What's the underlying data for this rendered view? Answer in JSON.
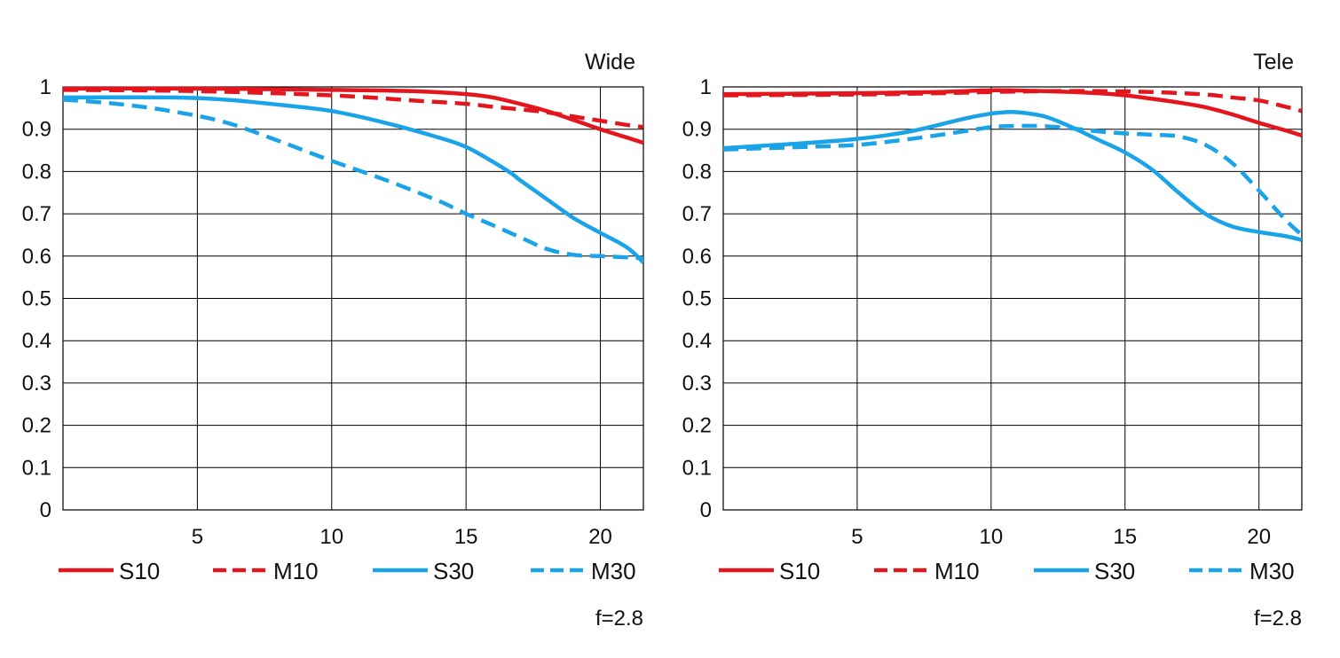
{
  "colors": {
    "red": "#e3161d",
    "blue": "#1aa3e8",
    "grid": "#000000"
  },
  "chart_data": [
    {
      "type": "line",
      "title": "Wide",
      "note": "f=2.8",
      "xlim": [
        0,
        21.6
      ],
      "ylim": [
        0,
        1
      ],
      "grid": true,
      "legend_position": "bottom",
      "x_ticks": [
        5,
        10,
        15,
        20
      ],
      "y_ticks": [
        "0",
        "0.1",
        "0.2",
        "0.3",
        "0.4",
        "0.5",
        "0.6",
        "0.7",
        "0.8",
        "0.9",
        "1"
      ],
      "series": [
        {
          "name": "S10",
          "color": "#e3161d",
          "dash": false,
          "points": [
            [
              0,
              0.996
            ],
            [
              5,
              0.996
            ],
            [
              10,
              0.993
            ],
            [
              13,
              0.99
            ],
            [
              15,
              0.983
            ],
            [
              16,
              0.975
            ],
            [
              17,
              0.96
            ],
            [
              18,
              0.943
            ],
            [
              19,
              0.922
            ],
            [
              20,
              0.9
            ],
            [
              21,
              0.88
            ],
            [
              21.6,
              0.868
            ]
          ]
        },
        {
          "name": "M10",
          "color": "#e3161d",
          "dash": true,
          "points": [
            [
              0,
              0.993
            ],
            [
              5,
              0.99
            ],
            [
              10,
              0.98
            ],
            [
              13,
              0.968
            ],
            [
              15,
              0.96
            ],
            [
              16,
              0.953
            ],
            [
              17,
              0.947
            ],
            [
              18,
              0.94
            ],
            [
              19,
              0.93
            ],
            [
              20,
              0.92
            ],
            [
              21,
              0.91
            ],
            [
              21.6,
              0.905
            ]
          ]
        },
        {
          "name": "S30",
          "color": "#1aa3e8",
          "dash": false,
          "points": [
            [
              0,
              0.975
            ],
            [
              4,
              0.975
            ],
            [
              6,
              0.97
            ],
            [
              8,
              0.958
            ],
            [
              10,
              0.943
            ],
            [
              12,
              0.915
            ],
            [
              14,
              0.88
            ],
            [
              15,
              0.858
            ],
            [
              16,
              0.823
            ],
            [
              16.7,
              0.795
            ],
            [
              17,
              0.78
            ],
            [
              18,
              0.735
            ],
            [
              19,
              0.69
            ],
            [
              20,
              0.655
            ],
            [
              21,
              0.62
            ],
            [
              21.6,
              0.585
            ]
          ]
        },
        {
          "name": "M30",
          "color": "#1aa3e8",
          "dash": true,
          "points": [
            [
              0,
              0.97
            ],
            [
              2,
              0.96
            ],
            [
              4,
              0.943
            ],
            [
              6,
              0.917
            ],
            [
              8,
              0.873
            ],
            [
              10,
              0.825
            ],
            [
              12,
              0.78
            ],
            [
              14,
              0.73
            ],
            [
              15,
              0.7
            ],
            [
              16,
              0.673
            ],
            [
              17,
              0.645
            ],
            [
              18,
              0.617
            ],
            [
              19,
              0.603
            ],
            [
              20,
              0.6
            ],
            [
              21,
              0.597
            ],
            [
              21.6,
              0.595
            ]
          ]
        }
      ]
    },
    {
      "type": "line",
      "title": "Tele",
      "note": "f=2.8",
      "xlim": [
        0,
        21.6
      ],
      "ylim": [
        0,
        1
      ],
      "grid": true,
      "legend_position": "bottom",
      "x_ticks": [
        5,
        10,
        15,
        20
      ],
      "y_ticks": [
        "0",
        "0.1",
        "0.2",
        "0.3",
        "0.4",
        "0.5",
        "0.6",
        "0.7",
        "0.8",
        "0.9",
        "1"
      ],
      "series": [
        {
          "name": "S10",
          "color": "#e3161d",
          "dash": false,
          "points": [
            [
              0,
              0.983
            ],
            [
              5,
              0.985
            ],
            [
              8,
              0.988
            ],
            [
              10,
              0.992
            ],
            [
              12,
              0.99
            ],
            [
              14,
              0.985
            ],
            [
              15,
              0.98
            ],
            [
              16,
              0.972
            ],
            [
              17,
              0.963
            ],
            [
              18,
              0.952
            ],
            [
              19,
              0.935
            ],
            [
              20,
              0.915
            ],
            [
              21,
              0.897
            ],
            [
              21.6,
              0.885
            ]
          ]
        },
        {
          "name": "M10",
          "color": "#e3161d",
          "dash": true,
          "points": [
            [
              0,
              0.98
            ],
            [
              5,
              0.982
            ],
            [
              8,
              0.985
            ],
            [
              10,
              0.988
            ],
            [
              12,
              0.99
            ],
            [
              14,
              0.99
            ],
            [
              16,
              0.988
            ],
            [
              18,
              0.982
            ],
            [
              19,
              0.975
            ],
            [
              20,
              0.968
            ],
            [
              21,
              0.953
            ],
            [
              21.6,
              0.943
            ]
          ]
        },
        {
          "name": "S30",
          "color": "#1aa3e8",
          "dash": false,
          "points": [
            [
              0,
              0.855
            ],
            [
              3,
              0.867
            ],
            [
              5,
              0.877
            ],
            [
              7,
              0.895
            ],
            [
              9,
              0.925
            ],
            [
              10,
              0.937
            ],
            [
              10.5,
              0.94
            ],
            [
              11,
              0.94
            ],
            [
              12,
              0.93
            ],
            [
              13,
              0.905
            ],
            [
              14,
              0.875
            ],
            [
              15,
              0.845
            ],
            [
              16,
              0.805
            ],
            [
              17,
              0.75
            ],
            [
              18,
              0.7
            ],
            [
              19,
              0.67
            ],
            [
              20,
              0.657
            ],
            [
              21,
              0.647
            ],
            [
              21.6,
              0.638
            ]
          ]
        },
        {
          "name": "M30",
          "color": "#1aa3e8",
          "dash": true,
          "points": [
            [
              0,
              0.852
            ],
            [
              3,
              0.858
            ],
            [
              5,
              0.863
            ],
            [
              7,
              0.877
            ],
            [
              9,
              0.895
            ],
            [
              10,
              0.905
            ],
            [
              11,
              0.908
            ],
            [
              12,
              0.907
            ],
            [
              13,
              0.902
            ],
            [
              14,
              0.895
            ],
            [
              15,
              0.89
            ],
            [
              16,
              0.887
            ],
            [
              17,
              0.883
            ],
            [
              18,
              0.863
            ],
            [
              19,
              0.82
            ],
            [
              20,
              0.755
            ],
            [
              21,
              0.685
            ],
            [
              21.6,
              0.65
            ]
          ]
        }
      ]
    }
  ]
}
